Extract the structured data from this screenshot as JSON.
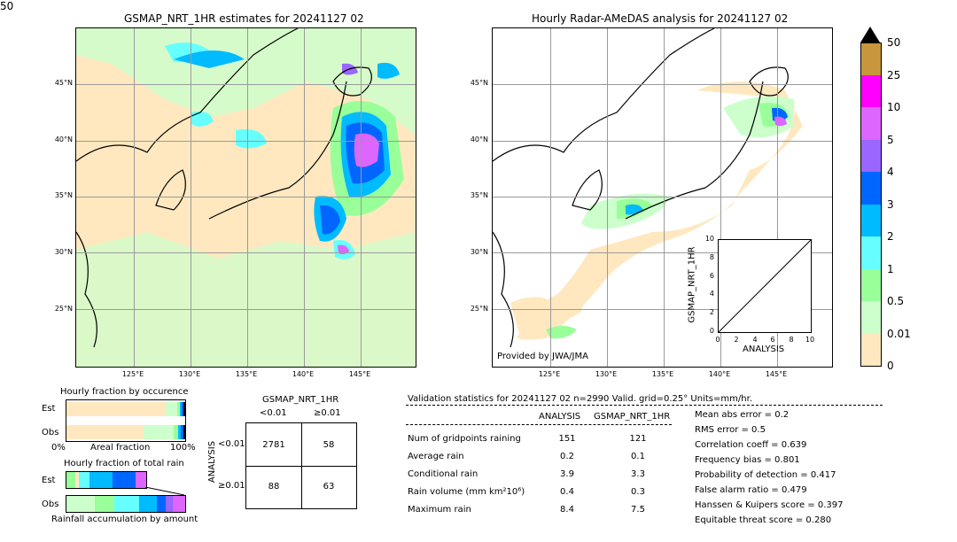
{
  "left_map": {
    "title": "GSMAP_NRT_1HR estimates for 20241127 02",
    "lat_labels": [
      "45°N",
      "40°N",
      "35°N",
      "30°N",
      "25°N"
    ],
    "lon_labels": [
      "125°E",
      "130°E",
      "135°E",
      "140°E",
      "145°E"
    ]
  },
  "right_map": {
    "title": "Hourly Radar-AMeDAS analysis for 20241127 02",
    "lat_labels": [
      "45°N",
      "40°N",
      "35°N",
      "30°N",
      "25°N"
    ],
    "lon_labels": [
      "125°E",
      "130°E",
      "135°E",
      "140°E",
      "145°E"
    ],
    "credit": "Provided by JWA/JMA"
  },
  "colorbar": {
    "labels": [
      "50",
      "25",
      "10",
      "5",
      "4",
      "3",
      "2",
      "1",
      "0.5",
      "0.01",
      "0"
    ],
    "colors": [
      "#c8963c",
      "#ff00ff",
      "#dd66ff",
      "#9966ff",
      "#0066ff",
      "#00bbff",
      "#66ffff",
      "#99ff99",
      "#ccffcc",
      "#ffe8c0"
    ]
  },
  "scatter": {
    "xlabel": "ANALYSIS",
    "ylabel": "GSMAP_NRT_1HR",
    "x_ticks": [
      "0",
      "2",
      "4",
      "6",
      "8",
      "10"
    ],
    "y_ticks": [
      "0",
      "2",
      "4",
      "6",
      "8",
      "10"
    ],
    "xlim": [
      0,
      10
    ],
    "ylim": [
      0,
      10
    ]
  },
  "occurrence": {
    "title": "Hourly fraction by occurence",
    "rows": [
      "Est",
      "Obs"
    ],
    "axis_left": "0%",
    "axis_mid": "Areal fraction",
    "axis_right": "100%"
  },
  "total_rain": {
    "title": "Hourly fraction of total rain",
    "rows": [
      "Est",
      "Obs"
    ],
    "axis_label": "Rainfall accumulation by amount"
  },
  "contingency": {
    "top_title": "GSMAP_NRT_1HR",
    "col_labels": [
      "<0.01",
      "≥0.01"
    ],
    "side_title": "ANALYSIS",
    "row_labels": [
      "<0.01",
      "≥0.01"
    ],
    "cells": [
      [
        "2781",
        "58"
      ],
      [
        "88",
        "63"
      ]
    ]
  },
  "validation": {
    "header": "Validation statistics for 20241127 02  n=2990 Valid. grid=0.25° Units=mm/hr.",
    "col_analysis": "ANALYSIS",
    "col_gsmap": "GSMAP_NRT_1HR",
    "rows": [
      {
        "label": "Num of gridpoints raining",
        "analysis": "151",
        "gsmap": "121"
      },
      {
        "label": "Average rain",
        "analysis": "0.2",
        "gsmap": "0.1"
      },
      {
        "label": "Conditional rain",
        "analysis": "3.9",
        "gsmap": "3.3"
      },
      {
        "label": "Rain volume (mm km²10⁶)",
        "analysis": "0.4",
        "gsmap": "0.3"
      },
      {
        "label": "Maximum rain",
        "analysis": "8.4",
        "gsmap": "7.5"
      }
    ],
    "scores": [
      "Mean abs error =    0.2",
      "RMS error =    0.5",
      "Correlation coeff =  0.639",
      "Frequency bias =  0.801",
      "Probability of detection =  0.417",
      "False alarm ratio =  0.479",
      "Hanssen & Kuipers score =  0.397",
      "Equitable threat score =  0.280"
    ]
  }
}
